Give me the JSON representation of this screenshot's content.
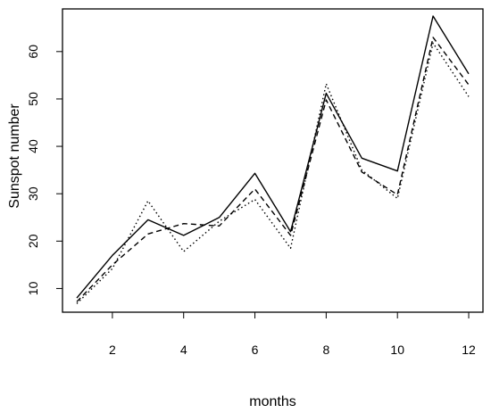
{
  "chart_data": {
    "type": "line",
    "title": "",
    "xlabel": "months",
    "ylabel": "Sunspot number",
    "xlim": [
      0.6,
      12.4
    ],
    "ylim": [
      5,
      69
    ],
    "x": [
      1,
      2,
      3,
      4,
      5,
      6,
      7,
      8,
      9,
      10,
      11,
      12
    ],
    "xticks": [
      2,
      4,
      6,
      8,
      10,
      12
    ],
    "yticks": [
      10,
      20,
      30,
      40,
      50,
      60
    ],
    "grid": false,
    "legend": "none",
    "series": [
      {
        "style": "solid",
        "color": "#000000",
        "values": [
          8.0,
          17.0,
          24.5,
          21.2,
          25.0,
          34.3,
          22.0,
          51.2,
          37.5,
          34.8,
          67.5,
          55.3
        ]
      },
      {
        "style": "dashed",
        "color": "#000000",
        "values": [
          7.2,
          15.0,
          21.5,
          23.7,
          23.2,
          31.0,
          21.2,
          49.8,
          34.6,
          29.8,
          63.0,
          53.0
        ]
      },
      {
        "style": "dotted",
        "color": "#000000",
        "values": [
          6.8,
          14.2,
          28.5,
          17.8,
          24.2,
          28.8,
          18.5,
          53.2,
          35.0,
          29.0,
          61.8,
          50.5
        ]
      }
    ]
  }
}
